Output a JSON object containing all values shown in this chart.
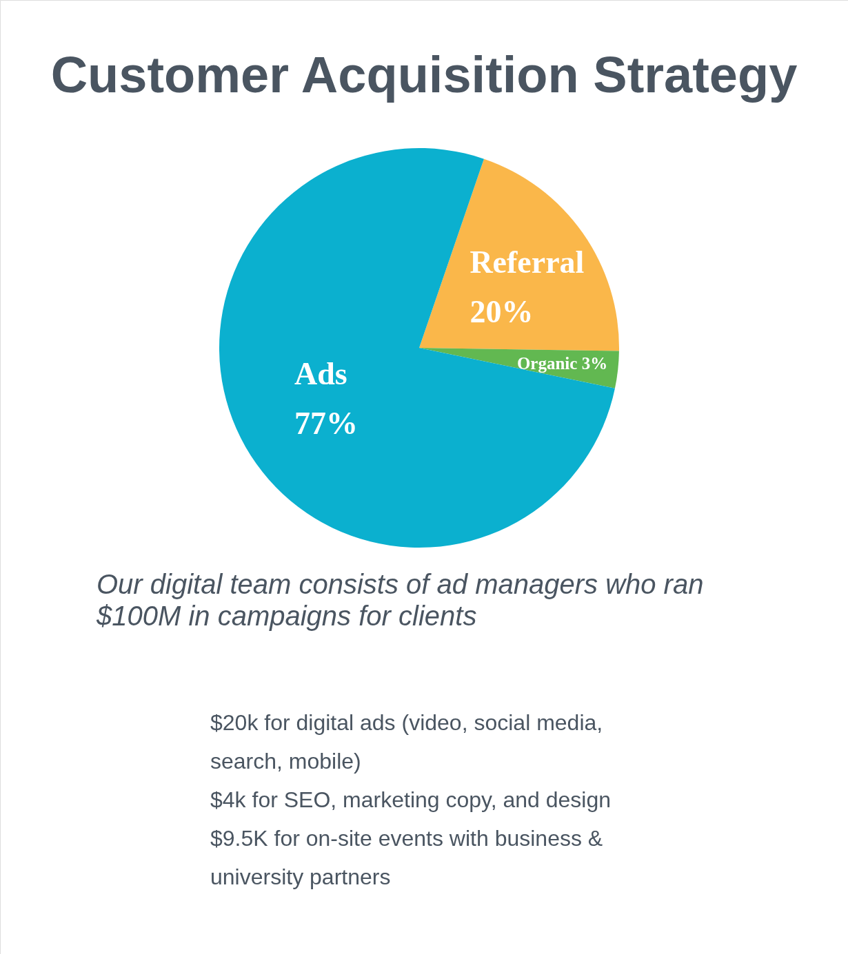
{
  "chart_data": {
    "type": "pie",
    "title": "Customer Acquisition Strategy",
    "categories": [
      "Referral",
      "Organic",
      "Ads"
    ],
    "values": [
      20,
      3,
      77
    ],
    "colors": [
      "#fab74a",
      "#62b851",
      "#0bb0cf"
    ],
    "value_labels": [
      "20%",
      "3%",
      "77%"
    ],
    "annotations": [
      "Our digital team consists of ad managers who ran $100M in campaigns for clients",
      "$20k for digital ads (video, social media, search, mobile)",
      "$4k for SEO, marketing copy, and design",
      "$9.5K for on-site events with business & university partners"
    ]
  }
}
